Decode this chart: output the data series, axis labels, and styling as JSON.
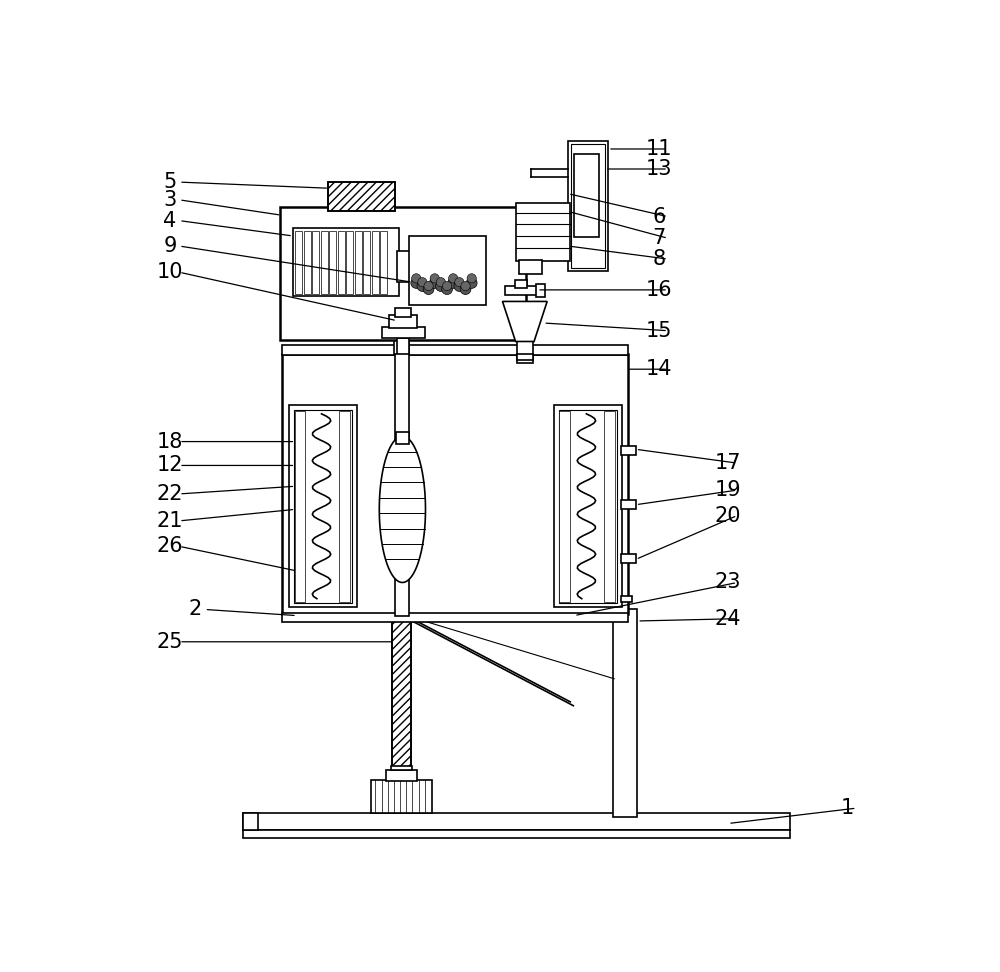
{
  "bg_color": "#ffffff",
  "line_color": "#000000",
  "fig_width": 10.0,
  "fig_height": 9.72
}
